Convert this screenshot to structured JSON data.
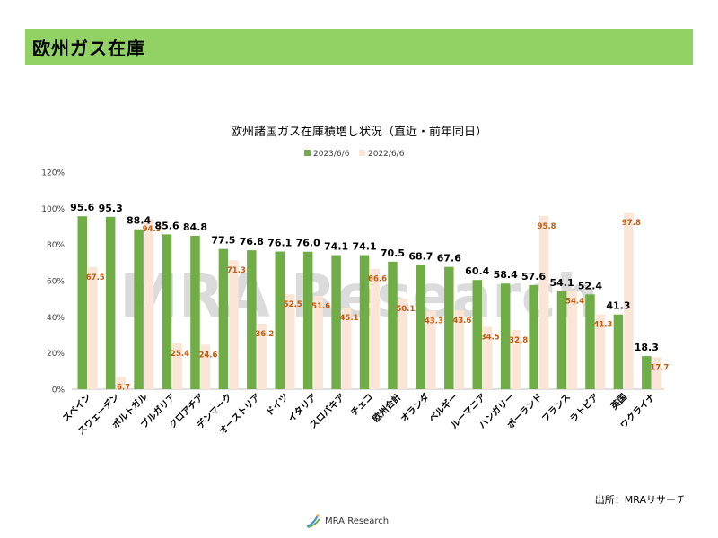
{
  "header": {
    "title": "欧州ガス在庫"
  },
  "source": "出所：MRAリサーチ",
  "footer": {
    "logo_text": "MRA Research"
  },
  "watermark": "MRA Research",
  "colors": {
    "header_bg": "#92d264",
    "series_2023": "#70ad47",
    "series_2022": "#fbe5d6",
    "label_2022": "#c55a11"
  },
  "chart_data": {
    "type": "bar",
    "title": "欧州諸国ガス在庫積増し状況（直近・前年同日）",
    "xlabel": "",
    "ylabel": "",
    "ylim": [
      0,
      120
    ],
    "yticks": [
      "0%",
      "20%",
      "40%",
      "60%",
      "80%",
      "100%",
      "120%"
    ],
    "ytick_values": [
      0,
      20,
      40,
      60,
      80,
      100,
      120
    ],
    "legend_position": "top-center",
    "grid": false,
    "categories": [
      "スペイン",
      "スウェーデン",
      "ポルトガル",
      "ブルガリア",
      "クロアチア",
      "デンマーク",
      "オーストリア",
      "ドイツ",
      "イタリア",
      "スロバキア",
      "チェコ",
      "欧州合計",
      "オランダ",
      "ベルギー",
      "ルーマニア",
      "ハンガリー",
      "ポーランド",
      "フランス",
      "ラトビア",
      "英国",
      "ウクライナ"
    ],
    "series": [
      {
        "name": "2023/6/6",
        "values": [
          95.6,
          95.3,
          88.4,
          85.6,
          84.8,
          77.5,
          76.8,
          76.1,
          76.0,
          74.1,
          74.1,
          70.5,
          68.7,
          67.6,
          60.4,
          58.4,
          57.6,
          54.1,
          52.4,
          41.3,
          18.3
        ]
      },
      {
        "name": "2022/6/6",
        "values": [
          67.5,
          6.7,
          94.3,
          25.4,
          24.6,
          71.3,
          36.2,
          52.5,
          51.6,
          45.1,
          66.6,
          50.1,
          43.3,
          43.6,
          34.5,
          32.8,
          95.8,
          54.4,
          41.3,
          97.8,
          17.7
        ]
      }
    ]
  }
}
